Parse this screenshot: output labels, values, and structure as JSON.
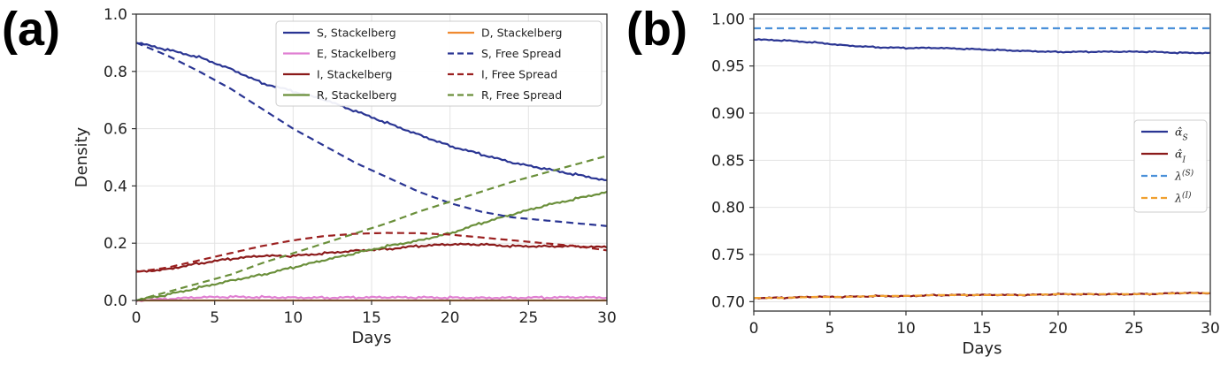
{
  "chart_data": [
    {
      "id": "a",
      "panel_label": "(a)",
      "type": "line",
      "xlabel": "Days",
      "ylabel": "Density",
      "xlim": [
        0,
        30
      ],
      "ylim": [
        0,
        1.0
      ],
      "xticks": [
        0,
        5,
        10,
        15,
        20,
        25,
        30
      ],
      "yticks": [
        0.0,
        0.2,
        0.4,
        0.6,
        0.8,
        1.0
      ],
      "ytick_labels": [
        "0.0",
        "0.2",
        "0.4",
        "0.6",
        "0.8",
        "1.0"
      ],
      "grid": true,
      "legend_position": "top-right",
      "legend_columns": 2,
      "x": [
        0,
        2,
        4,
        6,
        8,
        10,
        12,
        14,
        16,
        18,
        20,
        22,
        24,
        26,
        28,
        30
      ],
      "series": [
        {
          "name": "S, Stackelberg",
          "color": "#2a3593",
          "dash": "solid",
          "values": [
            0.9,
            0.875,
            0.85,
            0.81,
            0.76,
            0.73,
            0.7,
            0.66,
            0.62,
            0.58,
            0.54,
            0.51,
            0.48,
            0.46,
            0.44,
            0.42
          ]
        },
        {
          "name": "E, Stackelberg",
          "color": "#e07fd2",
          "dash": "solid",
          "values": [
            0.0,
            0.005,
            0.01,
            0.012,
            0.012,
            0.011,
            0.01,
            0.01,
            0.01,
            0.01,
            0.01,
            0.01,
            0.01,
            0.01,
            0.01,
            0.01
          ]
        },
        {
          "name": "I, Stackelberg",
          "color": "#8b1a1a",
          "dash": "solid",
          "values": [
            0.1,
            0.11,
            0.13,
            0.145,
            0.155,
            0.155,
            0.165,
            0.175,
            0.18,
            0.19,
            0.195,
            0.195,
            0.19,
            0.19,
            0.19,
            0.185
          ]
        },
        {
          "name": "R, Stackelberg",
          "color": "#6a8f3a",
          "dash": "solid",
          "values": [
            0.0,
            0.02,
            0.045,
            0.07,
            0.09,
            0.115,
            0.14,
            0.165,
            0.19,
            0.21,
            0.235,
            0.27,
            0.3,
            0.33,
            0.355,
            0.38
          ]
        },
        {
          "name": "D, Stackelberg",
          "color": "#f08a30",
          "dash": "solid",
          "values": [
            0.0,
            0.0,
            0.0,
            0.0,
            0.0,
            0.0,
            0.0,
            0.0,
            0.0,
            0.0,
            0.0,
            0.0,
            0.0,
            0.0,
            0.0,
            0.0
          ]
        },
        {
          "name": "S, Free Spread",
          "color": "#2a3593",
          "dash": "dashed",
          "values": [
            0.9,
            0.855,
            0.8,
            0.74,
            0.67,
            0.6,
            0.54,
            0.48,
            0.43,
            0.38,
            0.34,
            0.31,
            0.29,
            0.28,
            0.27,
            0.26
          ]
        },
        {
          "name": "I, Free Spread",
          "color": "#9b2020",
          "dash": "dashed",
          "values": [
            0.1,
            0.115,
            0.14,
            0.165,
            0.19,
            0.21,
            0.225,
            0.233,
            0.236,
            0.235,
            0.23,
            0.22,
            0.21,
            0.2,
            0.19,
            0.175
          ]
        },
        {
          "name": "R, Free Spread",
          "color": "#6a8f3a",
          "dash": "dashed",
          "values": [
            0.0,
            0.03,
            0.06,
            0.09,
            0.13,
            0.165,
            0.2,
            0.235,
            0.27,
            0.31,
            0.345,
            0.38,
            0.415,
            0.445,
            0.475,
            0.505
          ]
        }
      ]
    },
    {
      "id": "b",
      "panel_label": "(b)",
      "type": "line",
      "xlabel": "Days",
      "ylabel": "",
      "xlim": [
        0,
        30
      ],
      "ylim": [
        0.69,
        1.005
      ],
      "xticks": [
        0,
        5,
        10,
        15,
        20,
        25,
        30
      ],
      "yticks": [
        0.7,
        0.75,
        0.8,
        0.85,
        0.9,
        0.95,
        1.0
      ],
      "ytick_labels": [
        "0.70",
        "0.75",
        "0.80",
        "0.85",
        "0.90",
        "0.95",
        "1.00"
      ],
      "grid": true,
      "legend_position": "center-right",
      "legend_columns": 1,
      "x": [
        0,
        2,
        4,
        6,
        8,
        10,
        12,
        14,
        16,
        18,
        20,
        22,
        24,
        26,
        28,
        30
      ],
      "series": [
        {
          "name": "α̂",
          "name_sub": "S",
          "color": "#2a3593",
          "dash": "solid",
          "values": [
            0.978,
            0.977,
            0.975,
            0.972,
            0.97,
            0.969,
            0.969,
            0.968,
            0.967,
            0.966,
            0.965,
            0.965,
            0.965,
            0.965,
            0.964,
            0.964
          ]
        },
        {
          "name": "α̂",
          "name_sub": "I",
          "color": "#8b1a1a",
          "dash": "solid",
          "values": [
            0.704,
            0.704,
            0.705,
            0.705,
            0.706,
            0.706,
            0.707,
            0.707,
            0.707,
            0.707,
            0.708,
            0.708,
            0.708,
            0.708,
            0.709,
            0.709
          ]
        },
        {
          "name": "λ",
          "name_sup": "(S)",
          "color": "#4a90d9",
          "dash": "dashed",
          "values": [
            0.99,
            0.99,
            0.99,
            0.99,
            0.99,
            0.99,
            0.99,
            0.99,
            0.99,
            0.99,
            0.99,
            0.99,
            0.99,
            0.99,
            0.99,
            0.99
          ]
        },
        {
          "name": "λ",
          "name_sup": "(I)",
          "color": "#f0a030",
          "dash": "dashed",
          "values": [
            0.704,
            0.704,
            0.705,
            0.705,
            0.706,
            0.706,
            0.707,
            0.707,
            0.707,
            0.707,
            0.708,
            0.708,
            0.708,
            0.708,
            0.709,
            0.709
          ]
        }
      ]
    }
  ]
}
